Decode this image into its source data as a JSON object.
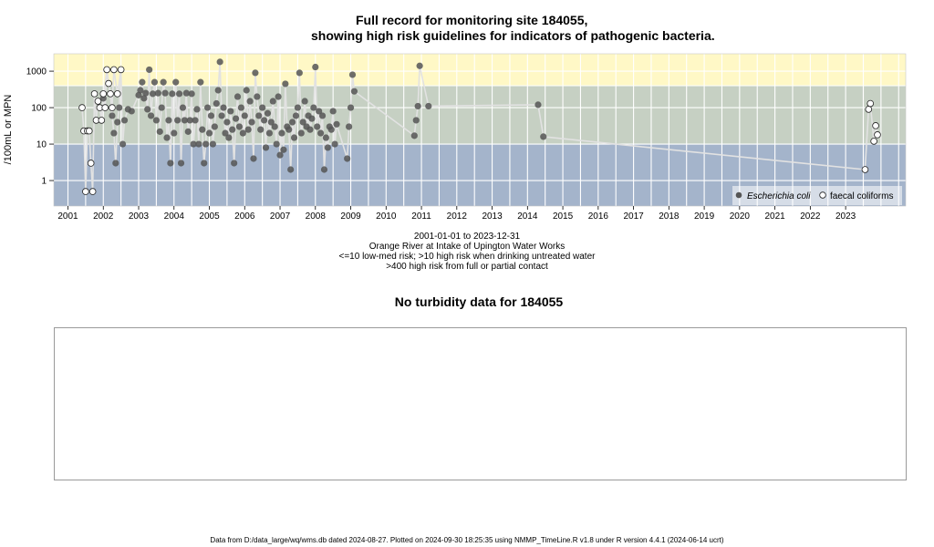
{
  "header": {
    "title_line1": "Full record for monitoring site 184055,",
    "title_line2": "showing high risk guidelines for indicators of pathogenic bacteria."
  },
  "colors": {
    "band_high": "#fff8c6",
    "band_med": "#c6d0c3",
    "band_low": "#a4b4cb",
    "ecoli": "#555555",
    "faecal_fill": "#ffffff",
    "faecal_stroke": "#222222",
    "connector": "#e2e2e2"
  },
  "chart_data": {
    "type": "scatter",
    "ylabel": "/100mL or MPN",
    "y_scale": "log",
    "y_ticks": [
      "1000",
      "100",
      "10",
      "1"
    ],
    "y_tick_values": [
      1000,
      100,
      10,
      1
    ],
    "ylim": [
      0.2,
      3000
    ],
    "xlim": [
      2000.6,
      2024.7
    ],
    "x_ticks": [
      "2001",
      "2002",
      "2003",
      "2004",
      "2005",
      "2006",
      "2007",
      "2008",
      "2009",
      "2010",
      "2011",
      "2012",
      "2013",
      "2014",
      "2015",
      "2016",
      "2017",
      "2018",
      "2019",
      "2020",
      "2021",
      "2022",
      "2023"
    ],
    "bands": [
      {
        "from": 400,
        "to": 3000,
        "color": "#fff8c6"
      },
      {
        "from": 10,
        "to": 400,
        "color": "#c6d0c3"
      },
      {
        "from": 0.2,
        "to": 10,
        "color": "#a4b4cb"
      }
    ],
    "grid": true,
    "legend": {
      "position": "bottom-right",
      "entries": [
        {
          "label": "Escherichia coli",
          "marker": "filled"
        },
        {
          "label": "faecal coliforms",
          "marker": "open"
        }
      ]
    },
    "series": [
      {
        "name": "Escherichia coli",
        "points": [
          [
            2002.0,
            180
          ],
          [
            2002.1,
            1100
          ],
          [
            2002.2,
            240
          ],
          [
            2002.25,
            60
          ],
          [
            2002.3,
            20
          ],
          [
            2002.35,
            3
          ],
          [
            2002.4,
            40
          ],
          [
            2002.45,
            100
          ],
          [
            2002.5,
            1100
          ],
          [
            2002.55,
            10
          ],
          [
            2002.6,
            45
          ],
          [
            2002.7,
            90
          ],
          [
            2002.8,
            80
          ],
          [
            2003.0,
            220
          ],
          [
            2003.05,
            300
          ],
          [
            2003.1,
            500
          ],
          [
            2003.15,
            180
          ],
          [
            2003.2,
            250
          ],
          [
            2003.25,
            90
          ],
          [
            2003.3,
            1100
          ],
          [
            2003.35,
            60
          ],
          [
            2003.4,
            240
          ],
          [
            2003.45,
            500
          ],
          [
            2003.5,
            45
          ],
          [
            2003.55,
            250
          ],
          [
            2003.6,
            22
          ],
          [
            2003.65,
            100
          ],
          [
            2003.7,
            500
          ],
          [
            2003.75,
            250
          ],
          [
            2003.8,
            15
          ],
          [
            2003.85,
            45
          ],
          [
            2003.9,
            3
          ],
          [
            2003.95,
            240
          ],
          [
            2004.0,
            20
          ],
          [
            2004.05,
            500
          ],
          [
            2004.1,
            45
          ],
          [
            2004.15,
            240
          ],
          [
            2004.2,
            3
          ],
          [
            2004.25,
            100
          ],
          [
            2004.3,
            45
          ],
          [
            2004.35,
            250
          ],
          [
            2004.4,
            22
          ],
          [
            2004.45,
            45
          ],
          [
            2004.5,
            240
          ],
          [
            2004.55,
            10
          ],
          [
            2004.6,
            45
          ],
          [
            2004.65,
            90
          ],
          [
            2004.7,
            10
          ],
          [
            2004.75,
            500
          ],
          [
            2004.8,
            25
          ],
          [
            2004.85,
            3
          ],
          [
            2004.9,
            10
          ],
          [
            2004.95,
            100
          ],
          [
            2005.0,
            20
          ],
          [
            2005.05,
            60
          ],
          [
            2005.1,
            10
          ],
          [
            2005.15,
            30
          ],
          [
            2005.2,
            130
          ],
          [
            2005.25,
            300
          ],
          [
            2005.3,
            1800
          ],
          [
            2005.35,
            60
          ],
          [
            2005.4,
            100
          ],
          [
            2005.45,
            20
          ],
          [
            2005.5,
            40
          ],
          [
            2005.55,
            15
          ],
          [
            2005.6,
            80
          ],
          [
            2005.65,
            25
          ],
          [
            2005.7,
            3
          ],
          [
            2005.75,
            50
          ],
          [
            2005.8,
            200
          ],
          [
            2005.85,
            30
          ],
          [
            2005.9,
            100
          ],
          [
            2005.95,
            20
          ],
          [
            2006.0,
            60
          ],
          [
            2006.05,
            300
          ],
          [
            2006.1,
            25
          ],
          [
            2006.15,
            150
          ],
          [
            2006.2,
            40
          ],
          [
            2006.25,
            4
          ],
          [
            2006.3,
            900
          ],
          [
            2006.35,
            200
          ],
          [
            2006.4,
            60
          ],
          [
            2006.45,
            25
          ],
          [
            2006.5,
            100
          ],
          [
            2006.55,
            45
          ],
          [
            2006.6,
            8
          ],
          [
            2006.65,
            70
          ],
          [
            2006.7,
            20
          ],
          [
            2006.75,
            40
          ],
          [
            2006.8,
            150
          ],
          [
            2006.85,
            30
          ],
          [
            2006.9,
            10
          ],
          [
            2006.95,
            200
          ],
          [
            2007.0,
            5
          ],
          [
            2007.05,
            20
          ],
          [
            2007.1,
            7
          ],
          [
            2007.15,
            450
          ],
          [
            2007.2,
            30
          ],
          [
            2007.25,
            25
          ],
          [
            2007.3,
            2
          ],
          [
            2007.35,
            40
          ],
          [
            2007.4,
            15
          ],
          [
            2007.45,
            60
          ],
          [
            2007.5,
            100
          ],
          [
            2007.55,
            900
          ],
          [
            2007.6,
            20
          ],
          [
            2007.65,
            40
          ],
          [
            2007.7,
            150
          ],
          [
            2007.75,
            30
          ],
          [
            2007.8,
            60
          ],
          [
            2007.85,
            25
          ],
          [
            2007.9,
            50
          ],
          [
            2007.95,
            100
          ],
          [
            2008.0,
            1300
          ],
          [
            2008.05,
            30
          ],
          [
            2008.1,
            80
          ],
          [
            2008.15,
            20
          ],
          [
            2008.2,
            60
          ],
          [
            2008.25,
            2
          ],
          [
            2008.3,
            15
          ],
          [
            2008.35,
            8
          ],
          [
            2008.4,
            30
          ],
          [
            2008.45,
            25
          ],
          [
            2008.5,
            80
          ],
          [
            2008.55,
            10
          ],
          [
            2008.6,
            35
          ],
          [
            2008.9,
            4
          ],
          [
            2008.95,
            30
          ],
          [
            2009.0,
            100
          ],
          [
            2009.05,
            800
          ],
          [
            2009.1,
            280
          ],
          [
            2010.8,
            17
          ],
          [
            2010.85,
            45
          ],
          [
            2010.9,
            110
          ],
          [
            2010.95,
            1400
          ],
          [
            2011.2,
            110
          ],
          [
            2014.3,
            120
          ],
          [
            2014.45,
            16
          ]
        ]
      },
      {
        "name": "faecal coliforms",
        "points": [
          [
            2001.4,
            100
          ],
          [
            2001.45,
            23
          ],
          [
            2001.5,
            0.5
          ],
          [
            2001.55,
            23
          ],
          [
            2001.6,
            23
          ],
          [
            2001.65,
            3
          ],
          [
            2001.7,
            0.5
          ],
          [
            2001.75,
            240
          ],
          [
            2001.8,
            45
          ],
          [
            2001.85,
            150
          ],
          [
            2001.9,
            100
          ],
          [
            2001.95,
            45
          ],
          [
            2002.0,
            240
          ],
          [
            2002.05,
            100
          ],
          [
            2002.1,
            1100
          ],
          [
            2002.15,
            460
          ],
          [
            2002.2,
            240
          ],
          [
            2002.25,
            100
          ],
          [
            2002.3,
            1100
          ],
          [
            2002.4,
            240
          ],
          [
            2002.5,
            1100
          ],
          [
            2023.55,
            2
          ],
          [
            2023.65,
            90
          ],
          [
            2023.7,
            130
          ],
          [
            2023.8,
            12
          ],
          [
            2023.85,
            32
          ],
          [
            2023.9,
            18
          ]
        ]
      }
    ]
  },
  "captions": {
    "line1": "2001-01-01 to 2023-12-31",
    "line2": "Orange River at Intake of Upington Water Works",
    "line3": "<=10 low-med risk; >10 high risk when drinking untreated water",
    "line4": ">400 high risk from full or partial contact"
  },
  "turbidity": {
    "title": "No turbidity data for 184055"
  },
  "footer": {
    "text": "Data from D:/data_large/wq/wms.db dated 2024-08-27. Plotted on 2024-09-30 18:25:35 using NMMP_TimeLine.R v1.8 under R version 4.4.1 (2024-06-14 ucrt)"
  }
}
